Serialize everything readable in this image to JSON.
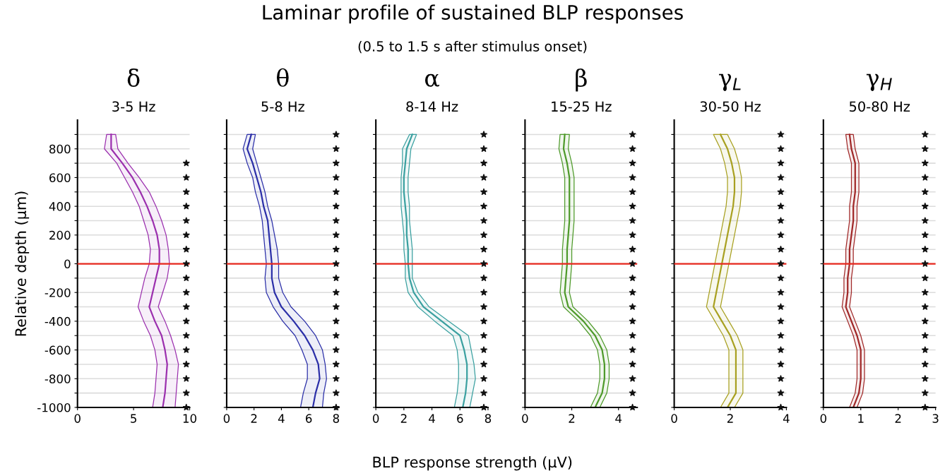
{
  "chart_data": [
    {
      "type": "line",
      "orientation": "horizontal",
      "title": "δ",
      "subtitle": "3-5 Hz",
      "ylabel": "Relative depth (µm)",
      "annotations": [
        "Laminar profile of sustained BLP responses",
        "(0.5 to 1.5 s after stimulus onset)"
      ],
      "x": [
        900,
        800,
        700,
        600,
        500,
        400,
        300,
        200,
        100,
        0,
        -100,
        -200,
        -300,
        -400,
        -500,
        -600,
        -700,
        -800,
        -900,
        -1000
      ],
      "series": [
        {
          "color": "#9b2fae",
          "values": [
            3.0,
            3.0,
            4.0,
            4.9,
            5.6,
            6.2,
            6.7,
            7.1,
            7.3,
            7.3,
            7.0,
            6.7,
            6.4,
            6.9,
            7.5,
            7.8,
            8.0,
            7.9,
            7.8,
            7.6
          ],
          "lower": [
            2.6,
            2.4,
            3.5,
            4.2,
            4.9,
            5.5,
            5.9,
            6.3,
            6.5,
            6.4,
            6.0,
            5.7,
            5.4,
            5.9,
            6.5,
            6.9,
            7.1,
            7.0,
            6.9,
            6.7
          ],
          "upper": [
            3.4,
            3.6,
            4.5,
            5.5,
            6.4,
            7.0,
            7.5,
            7.9,
            8.1,
            8.2,
            8.0,
            7.6,
            7.2,
            7.8,
            8.3,
            8.7,
            9.0,
            8.9,
            8.8,
            8.7
          ]
        },
        {
          "type": "scatter",
          "marker": "star",
          "color": "#111111",
          "x": [
            700,
            600,
            500,
            400,
            300,
            200,
            100,
            0,
            -100,
            -200,
            -300,
            -400,
            -500,
            -600,
            -700,
            -800,
            -900,
            -1000
          ],
          "values": [
            9.7,
            9.7,
            9.7,
            9.7,
            9.7,
            9.7,
            9.7,
            9.7,
            9.7,
            9.7,
            9.7,
            9.7,
            9.7,
            9.7,
            9.7,
            9.7,
            9.7,
            9.7
          ]
        }
      ],
      "xlim": [
        0,
        10
      ],
      "xticks": [
        0,
        5,
        10
      ],
      "ylim": [
        -1000,
        1000
      ],
      "yticks": [
        -1000,
        {
          "value": -900,
          "label": null
        },
        -800,
        {
          "value": -700,
          "label": null
        },
        -600,
        {
          "value": -500,
          "label": null
        },
        -400,
        {
          "value": -300,
          "label": null
        },
        -200,
        {
          "value": -100,
          "label": null
        },
        0,
        {
          "value": 100,
          "label": null
        },
        200,
        {
          "value": 300,
          "label": null
        },
        400,
        {
          "value": 500,
          "label": null
        },
        600,
        {
          "value": 700,
          "label": null
        },
        800,
        {
          "value": 900,
          "label": null
        }
      ],
      "ref_lines": [
        {
          "axis": "y",
          "value": 0,
          "color": "#e8281e"
        }
      ],
      "grid": "y"
    },
    {
      "type": "line",
      "orientation": "horizontal",
      "title": "θ",
      "subtitle": "5-8 Hz",
      "x": [
        900,
        800,
        700,
        600,
        500,
        400,
        300,
        200,
        100,
        0,
        -100,
        -200,
        -300,
        -400,
        -500,
        -600,
        -700,
        -800,
        -900,
        -1000
      ],
      "series": [
        {
          "color": "#2b2fa8",
          "values": [
            1.8,
            1.5,
            1.9,
            2.2,
            2.5,
            2.7,
            3.0,
            3.1,
            3.2,
            3.3,
            3.3,
            3.5,
            4.0,
            4.9,
            5.7,
            6.3,
            6.7,
            6.8,
            6.5,
            6.3
          ],
          "lower": [
            1.5,
            1.2,
            1.5,
            1.9,
            2.1,
            2.4,
            2.6,
            2.7,
            2.8,
            2.9,
            2.8,
            2.9,
            3.4,
            4.1,
            5.0,
            5.5,
            5.9,
            5.9,
            5.6,
            5.4
          ],
          "upper": [
            2.1,
            1.9,
            2.2,
            2.5,
            2.8,
            3.0,
            3.3,
            3.5,
            3.7,
            3.8,
            3.8,
            4.1,
            4.7,
            5.7,
            6.5,
            7.0,
            7.2,
            7.3,
            7.1,
            7.0
          ]
        },
        {
          "type": "scatter",
          "marker": "star",
          "color": "#111111",
          "values": [
            8,
            8,
            8,
            8,
            8,
            8,
            8,
            8,
            8,
            8,
            8,
            8,
            8,
            8,
            8,
            8,
            8,
            8,
            8,
            8
          ]
        }
      ],
      "xlim": [
        0,
        8.2
      ],
      "xticks": [
        0,
        2,
        4,
        6,
        8
      ],
      "ylim": [
        -1000,
        1000
      ],
      "yticks": [
        -1000,
        {
          "value": -900,
          "label": null
        },
        -800,
        {
          "value": -700,
          "label": null
        },
        -600,
        {
          "value": -500,
          "label": null
        },
        -400,
        {
          "value": -300,
          "label": null
        },
        -200,
        {
          "value": -100,
          "label": null
        },
        0,
        {
          "value": 100,
          "label": null
        },
        200,
        {
          "value": 300,
          "label": null
        },
        400,
        {
          "value": 500,
          "label": null
        },
        600,
        {
          "value": 700,
          "label": null
        },
        800,
        {
          "value": 900,
          "label": null
        }
      ],
      "ref_lines": [
        {
          "axis": "y",
          "value": 0,
          "color": "#e8281e"
        }
      ],
      "grid": "y",
      "tick_labels": "x"
    },
    {
      "type": "line",
      "orientation": "horizontal",
      "title": "α",
      "subtitle": "8-14 Hz",
      "xlabel": "BLP response strength (µV)",
      "x": [
        900,
        800,
        700,
        600,
        500,
        400,
        300,
        200,
        100,
        0,
        -100,
        -200,
        -300,
        -400,
        -500,
        -600,
        -700,
        -800,
        -900,
        -1000
      ],
      "series": [
        {
          "color": "#3aa0a0",
          "values": [
            2.6,
            2.2,
            2.1,
            2.0,
            2.0,
            2.1,
            2.2,
            2.2,
            2.3,
            2.3,
            2.4,
            2.7,
            3.4,
            4.7,
            6.0,
            6.3,
            6.5,
            6.5,
            6.4,
            6.2
          ],
          "lower": [
            2.4,
            1.9,
            1.9,
            1.8,
            1.8,
            1.8,
            1.9,
            2.0,
            2.0,
            2.1,
            2.1,
            2.3,
            3.0,
            4.2,
            5.5,
            5.8,
            5.9,
            5.9,
            5.8,
            5.6
          ],
          "upper": [
            2.9,
            2.5,
            2.4,
            2.3,
            2.3,
            2.4,
            2.4,
            2.5,
            2.6,
            2.6,
            2.6,
            3.0,
            3.8,
            5.2,
            6.6,
            6.8,
            7.0,
            7.1,
            6.9,
            6.7
          ]
        },
        {
          "type": "scatter",
          "marker": "star",
          "color": "#111111",
          "values": [
            7.7,
            7.7,
            7.7,
            7.7,
            7.7,
            7.7,
            7.7,
            7.7,
            7.7,
            7.7,
            7.7,
            7.7,
            7.7,
            7.7,
            7.7,
            7.7,
            7.7,
            7.7,
            7.7,
            7.7
          ]
        }
      ],
      "xlim": [
        0,
        8
      ],
      "xticks": [
        0,
        2,
        4,
        6,
        8
      ],
      "ylim": [
        -1000,
        1000
      ],
      "yticks": [
        -1000,
        {
          "value": -900,
          "label": null
        },
        -800,
        {
          "value": -700,
          "label": null
        },
        -600,
        {
          "value": -500,
          "label": null
        },
        -400,
        {
          "value": -300,
          "label": null
        },
        -200,
        {
          "value": -100,
          "label": null
        },
        0,
        {
          "value": 100,
          "label": null
        },
        200,
        {
          "value": 300,
          "label": null
        },
        400,
        {
          "value": 500,
          "label": null
        },
        600,
        {
          "value": 700,
          "label": null
        },
        800,
        {
          "value": 900,
          "label": null
        }
      ],
      "ref_lines": [
        {
          "axis": "y",
          "value": 0,
          "color": "#e8281e"
        }
      ],
      "grid": "y",
      "tick_labels": "x"
    },
    {
      "type": "line",
      "orientation": "horizontal",
      "title": "β",
      "subtitle": "15-25 Hz",
      "x": [
        900,
        800,
        700,
        600,
        500,
        400,
        300,
        200,
        100,
        0,
        -100,
        -200,
        -300,
        -400,
        -500,
        -600,
        -700,
        -800,
        -900,
        -1000
      ],
      "series": [
        {
          "color": "#4e9a2a",
          "values": [
            1.7,
            1.65,
            1.8,
            1.9,
            1.9,
            1.9,
            1.9,
            1.85,
            1.8,
            1.8,
            1.75,
            1.7,
            1.85,
            2.5,
            3.0,
            3.3,
            3.4,
            3.4,
            3.3,
            3.0
          ],
          "lower": [
            1.5,
            1.45,
            1.6,
            1.7,
            1.7,
            1.7,
            1.7,
            1.65,
            1.6,
            1.6,
            1.55,
            1.5,
            1.65,
            2.3,
            2.8,
            3.1,
            3.2,
            3.2,
            3.1,
            2.8
          ],
          "upper": [
            1.9,
            1.85,
            2.0,
            2.1,
            2.1,
            2.1,
            2.1,
            2.05,
            2.0,
            2.0,
            1.95,
            1.9,
            2.05,
            2.7,
            3.2,
            3.5,
            3.6,
            3.6,
            3.5,
            3.2
          ]
        },
        {
          "type": "scatter",
          "marker": "star",
          "color": "#111111",
          "values": [
            4.6,
            4.6,
            4.6,
            4.6,
            4.6,
            4.6,
            4.6,
            4.6,
            4.6,
            4.6,
            4.6,
            4.6,
            4.6,
            4.6,
            4.6,
            4.6,
            4.6,
            4.6,
            4.6,
            4.6
          ]
        }
      ],
      "xlim": [
        0,
        4.8
      ],
      "xticks": [
        0,
        2,
        4
      ],
      "ylim": [
        -1000,
        1000
      ],
      "yticks": [
        -1000,
        {
          "value": -900,
          "label": null
        },
        -800,
        {
          "value": -700,
          "label": null
        },
        -600,
        {
          "value": -500,
          "label": null
        },
        -400,
        {
          "value": -300,
          "label": null
        },
        -200,
        {
          "value": -100,
          "label": null
        },
        0,
        {
          "value": 100,
          "label": null
        },
        200,
        {
          "value": 300,
          "label": null
        },
        400,
        {
          "value": 500,
          "label": null
        },
        600,
        {
          "value": 700,
          "label": null
        },
        800,
        {
          "value": 900,
          "label": null
        }
      ],
      "ref_lines": [
        {
          "axis": "y",
          "value": 0,
          "color": "#e8281e"
        }
      ],
      "grid": "y",
      "tick_labels": "x"
    },
    {
      "type": "line",
      "orientation": "horizontal",
      "title": "γ$_{L}$",
      "subtitle": "30-50 Hz",
      "x": [
        900,
        800,
        700,
        600,
        500,
        400,
        300,
        200,
        100,
        0,
        -100,
        -200,
        -300,
        -400,
        -500,
        -600,
        -700,
        -800,
        -900,
        -1000
      ],
      "series": [
        {
          "color": "#a8a020",
          "values": [
            1.65,
            1.9,
            2.05,
            2.15,
            2.15,
            2.1,
            2.0,
            1.9,
            1.8,
            1.7,
            1.6,
            1.5,
            1.4,
            1.7,
            2.0,
            2.2,
            2.2,
            2.2,
            2.2,
            1.9
          ],
          "lower": [
            1.4,
            1.65,
            1.8,
            1.9,
            1.9,
            1.85,
            1.75,
            1.65,
            1.55,
            1.45,
            1.35,
            1.25,
            1.15,
            1.45,
            1.75,
            1.95,
            1.95,
            1.95,
            1.95,
            1.65
          ],
          "upper": [
            1.9,
            2.15,
            2.3,
            2.4,
            2.4,
            2.35,
            2.25,
            2.15,
            2.05,
            1.95,
            1.85,
            1.75,
            1.65,
            1.95,
            2.25,
            2.45,
            2.45,
            2.45,
            2.45,
            2.15
          ]
        },
        {
          "type": "scatter",
          "marker": "star",
          "color": "#111111",
          "values": [
            3.8,
            3.8,
            3.8,
            3.8,
            3.8,
            3.8,
            3.8,
            3.8,
            3.8,
            3.8,
            3.8,
            3.8,
            3.8,
            3.8,
            3.8,
            3.8,
            3.8,
            3.8,
            3.8,
            3.8
          ]
        }
      ],
      "xlim": [
        0,
        4
      ],
      "xticks": [
        0,
        2,
        4
      ],
      "ylim": [
        -1000,
        1000
      ],
      "yticks": [
        -1000,
        {
          "value": -900,
          "label": null
        },
        -800,
        {
          "value": -700,
          "label": null
        },
        -600,
        {
          "value": -500,
          "label": null
        },
        -400,
        {
          "value": -300,
          "label": null
        },
        -200,
        {
          "value": -100,
          "label": null
        },
        0,
        {
          "value": 100,
          "label": null
        },
        200,
        {
          "value": 300,
          "label": null
        },
        400,
        {
          "value": 500,
          "label": null
        },
        600,
        {
          "value": 700,
          "label": null
        },
        800,
        {
          "value": 900,
          "label": null
        }
      ],
      "ref_lines": [
        {
          "axis": "y",
          "value": 0,
          "color": "#e8281e"
        }
      ],
      "grid": "y",
      "tick_labels": "x"
    },
    {
      "type": "line",
      "orientation": "horizontal",
      "title": "γ$_{H}$",
      "subtitle": "50-80 Hz",
      "x": [
        900,
        800,
        700,
        600,
        500,
        400,
        300,
        200,
        100,
        0,
        -100,
        -200,
        -300,
        -400,
        -500,
        -600,
        -700,
        -800,
        -900,
        -1000
      ],
      "series": [
        {
          "color": "#a02828",
          "values": [
            0.7,
            0.75,
            0.85,
            0.85,
            0.85,
            0.8,
            0.8,
            0.75,
            0.7,
            0.7,
            0.65,
            0.65,
            0.6,
            0.75,
            0.9,
            1.0,
            1.0,
            1.0,
            0.95,
            0.8
          ],
          "lower": [
            0.6,
            0.65,
            0.75,
            0.75,
            0.75,
            0.7,
            0.7,
            0.65,
            0.6,
            0.6,
            0.55,
            0.55,
            0.5,
            0.65,
            0.8,
            0.9,
            0.9,
            0.9,
            0.85,
            0.7
          ],
          "upper": [
            0.8,
            0.85,
            0.95,
            0.95,
            0.95,
            0.9,
            0.9,
            0.85,
            0.8,
            0.8,
            0.75,
            0.75,
            0.7,
            0.85,
            1.0,
            1.1,
            1.1,
            1.1,
            1.05,
            0.9
          ]
        },
        {
          "type": "scatter",
          "marker": "star",
          "color": "#111111",
          "values": [
            2.72,
            2.72,
            2.72,
            2.72,
            2.72,
            2.72,
            2.72,
            2.72,
            2.72,
            2.72,
            2.72,
            2.72,
            2.72,
            2.72,
            2.72,
            2.72,
            2.72,
            2.72,
            2.72,
            2.72
          ]
        }
      ],
      "xlim": [
        0,
        3
      ],
      "xticks": [
        0,
        1,
        2,
        3
      ],
      "ylim": [
        -1000,
        1000
      ],
      "yticks": [
        -1000,
        {
          "value": -900,
          "label": null
        },
        -800,
        {
          "value": -700,
          "label": null
        },
        -600,
        {
          "value": -500,
          "label": null
        },
        -400,
        {
          "value": -300,
          "label": null
        },
        -200,
        {
          "value": -100,
          "label": null
        },
        0,
        {
          "value": 100,
          "label": null
        },
        200,
        {
          "value": 300,
          "label": null
        },
        400,
        {
          "value": 500,
          "label": null
        },
        600,
        {
          "value": 700,
          "label": null
        },
        800,
        {
          "value": 900,
          "label": null
        }
      ],
      "ref_lines": [
        {
          "axis": "y",
          "value": 0,
          "color": "#e8281e"
        }
      ],
      "grid": "y",
      "tick_labels": "x"
    }
  ]
}
